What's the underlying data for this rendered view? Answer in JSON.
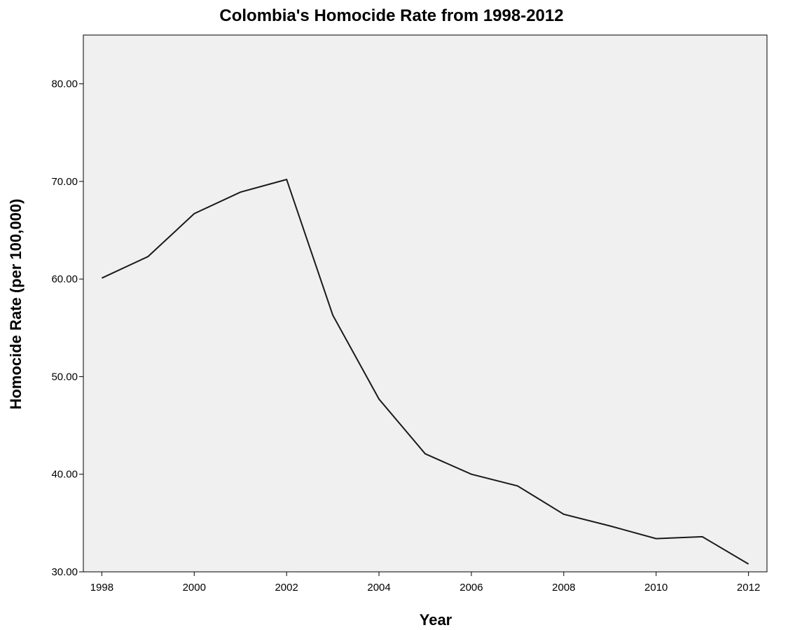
{
  "chart_data": {
    "type": "line",
    "title": "Colombia's Homocide Rate from 1998-2012",
    "xlabel": "Year",
    "ylabel": "Homocide Rate (per 100,000)",
    "x": [
      1998,
      1999,
      2000,
      2001,
      2002,
      2003,
      2004,
      2005,
      2006,
      2007,
      2008,
      2009,
      2010,
      2011,
      2012
    ],
    "series": [
      {
        "values": [
          60.1,
          62.3,
          66.7,
          68.9,
          70.2,
          56.3,
          47.7,
          42.1,
          40.0,
          38.8,
          35.9,
          34.7,
          33.4,
          33.6,
          30.8
        ]
      }
    ],
    "xlim": [
      1997.6,
      2012.4
    ],
    "ylim": [
      30,
      85
    ],
    "xticks": [
      "1998",
      "2000",
      "2002",
      "2004",
      "2006",
      "2008",
      "2010",
      "2012"
    ],
    "yticks": [
      "30.00",
      "40.00",
      "50.00",
      "60.00",
      "70.00",
      "80.00"
    ],
    "grid": false,
    "colors": {
      "plot_background": "#f0f0f0",
      "line": "#1a1a1a",
      "frame": "#000000"
    }
  }
}
